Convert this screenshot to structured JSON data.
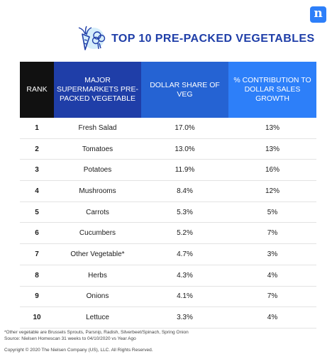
{
  "brand": {
    "logo_letter": "n",
    "accent": "#2d7ff9",
    "dark_blue": "#1f3ea8"
  },
  "title": "TOP 10 PRE-PACKED VEGETABLES",
  "chart_data": {
    "type": "table",
    "title": "TOP 10 PRE-PACKED VEGETABLES",
    "columns": [
      "RANK",
      "MAJOR SUPERMARKETS PRE-PACKED VEGETABLE",
      "DOLLAR SHARE OF VEG",
      "% CONTRIBUTION TO DOLLAR SALES GROWTH"
    ],
    "rows": [
      [
        "1",
        "Fresh Salad",
        "17.0%",
        "13%"
      ],
      [
        "2",
        "Tomatoes",
        "13.0%",
        "13%"
      ],
      [
        "3",
        "Potatoes",
        "11.9%",
        "16%"
      ],
      [
        "4",
        "Mushrooms",
        "8.4%",
        "12%"
      ],
      [
        "5",
        "Carrots",
        "5.3%",
        "5%"
      ],
      [
        "6",
        "Cucumbers",
        "5.2%",
        "7%"
      ],
      [
        "7",
        "Other Vegetable*",
        "4.7%",
        "3%"
      ],
      [
        "8",
        "Herbs",
        "4.3%",
        "4%"
      ],
      [
        "9",
        "Onions",
        "4.1%",
        "7%"
      ],
      [
        "10",
        "Lettuce",
        "3.3%",
        "4%"
      ]
    ]
  },
  "footnotes": [
    "*Other vegetable are Brussels Sprouts, Parsnip, Radish, Silverbeet/Spinach, Spring Onion",
    "Source: Nielsen Homescan 31 weeks to 04/10/2020 vs Year Ago"
  ],
  "copyright": "Copyright © 2020 The Nielsen Company (US), LLC. All Rights Reserved."
}
